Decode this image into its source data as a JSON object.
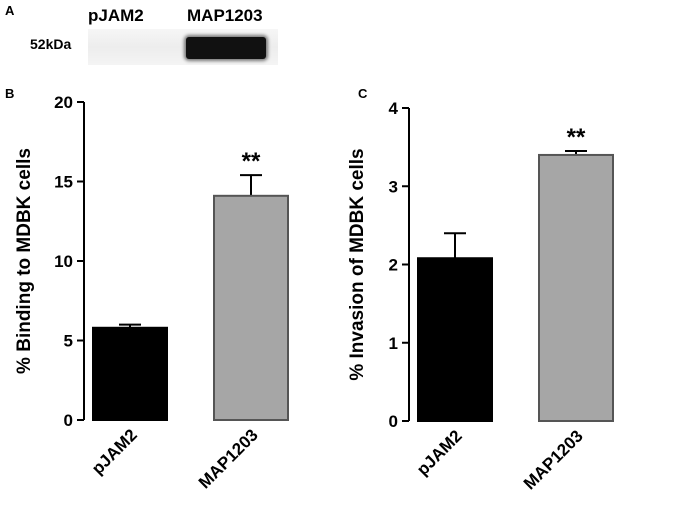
{
  "panel_a": {
    "letter": "A",
    "lanes": [
      "pJAM2",
      "MAP1203"
    ],
    "marker": "52kDa"
  },
  "chart_data": [
    {
      "panel": "B",
      "type": "bar",
      "categories": [
        "pJAM2",
        "MAP1203"
      ],
      "values": [
        5.8,
        14.1
      ],
      "errors": [
        0.2,
        1.3
      ],
      "colors": [
        "#000000",
        "#a6a6a6"
      ],
      "annotations": [
        "",
        "**"
      ],
      "title": "",
      "xlabel": "",
      "ylabel": "% Binding to MDBK cells",
      "ylim": [
        0,
        20
      ],
      "yticks": [
        0,
        5,
        10,
        15,
        20
      ]
    },
    {
      "panel": "C",
      "type": "bar",
      "categories": [
        "pJAM2",
        "MAP1203"
      ],
      "values": [
        2.08,
        3.4
      ],
      "errors": [
        0.32,
        0.05
      ],
      "colors": [
        "#000000",
        "#a6a6a6"
      ],
      "annotations": [
        "",
        "**"
      ],
      "title": "",
      "xlabel": "",
      "ylabel": "% Invasion of MDBK cells",
      "ylim": [
        0,
        4
      ],
      "yticks": [
        0,
        1,
        2,
        3,
        4
      ]
    }
  ]
}
